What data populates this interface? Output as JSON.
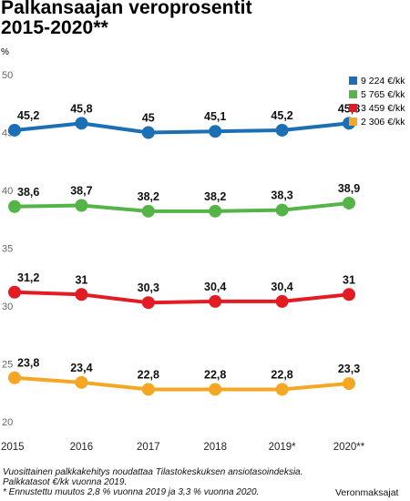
{
  "header": {
    "title_line1": "Palkansaajan veroprosentit",
    "title_line2": "2015-2020**",
    "unit": "%"
  },
  "notes": [
    "Vuosittainen palkkakehitys noudattaa Tilastokeskuksen ansiotasoindeksia.",
    "Palkkatasot €/kk vuonna 2019.",
    "* Ennustettu muutos 2,8 % vuonna 2019 ja 3,3 % vuonna 2020."
  ],
  "source": "Veronmaksajat",
  "chart_data": {
    "type": "line",
    "title": "Palkansaajan veroprosentit 2015-2020**",
    "ylabel": "%",
    "xlabel": "",
    "categories": [
      "2015",
      "2016",
      "2017",
      "2018",
      "2019*",
      "2020**"
    ],
    "ylim": [
      20,
      50
    ],
    "yticks": [
      "50",
      "45",
      "40",
      "35",
      "30",
      "25",
      "20"
    ],
    "grid": false,
    "legend_position": "top-right",
    "series": [
      {
        "name": "9 224 €/kk",
        "color": "#1a6fb5",
        "values": [
          45.2,
          45.8,
          45.0,
          45.1,
          45.2,
          45.8
        ],
        "labels": [
          "45,2",
          "45,8",
          "45",
          "45,1",
          "45,2",
          "45,8"
        ]
      },
      {
        "name": "5 765 €/kk",
        "color": "#55b447",
        "values": [
          38.6,
          38.7,
          38.2,
          38.2,
          38.3,
          38.9
        ],
        "labels": [
          "38,6",
          "38,7",
          "38,2",
          "38,2",
          "38,3",
          "38,9"
        ]
      },
      {
        "name": "3 459 €/kk",
        "color": "#e31b23",
        "values": [
          31.2,
          31.0,
          30.3,
          30.4,
          30.4,
          31.0
        ],
        "labels": [
          "31,2",
          "31",
          "30,3",
          "30,4",
          "30,4",
          "31"
        ]
      },
      {
        "name": "2 306 €/kk",
        "color": "#f5a623",
        "values": [
          23.8,
          23.4,
          22.8,
          22.8,
          22.8,
          23.3
        ],
        "labels": [
          "23,8",
          "23,4",
          "22,8",
          "22,8",
          "22,8",
          "23,3"
        ]
      }
    ]
  }
}
